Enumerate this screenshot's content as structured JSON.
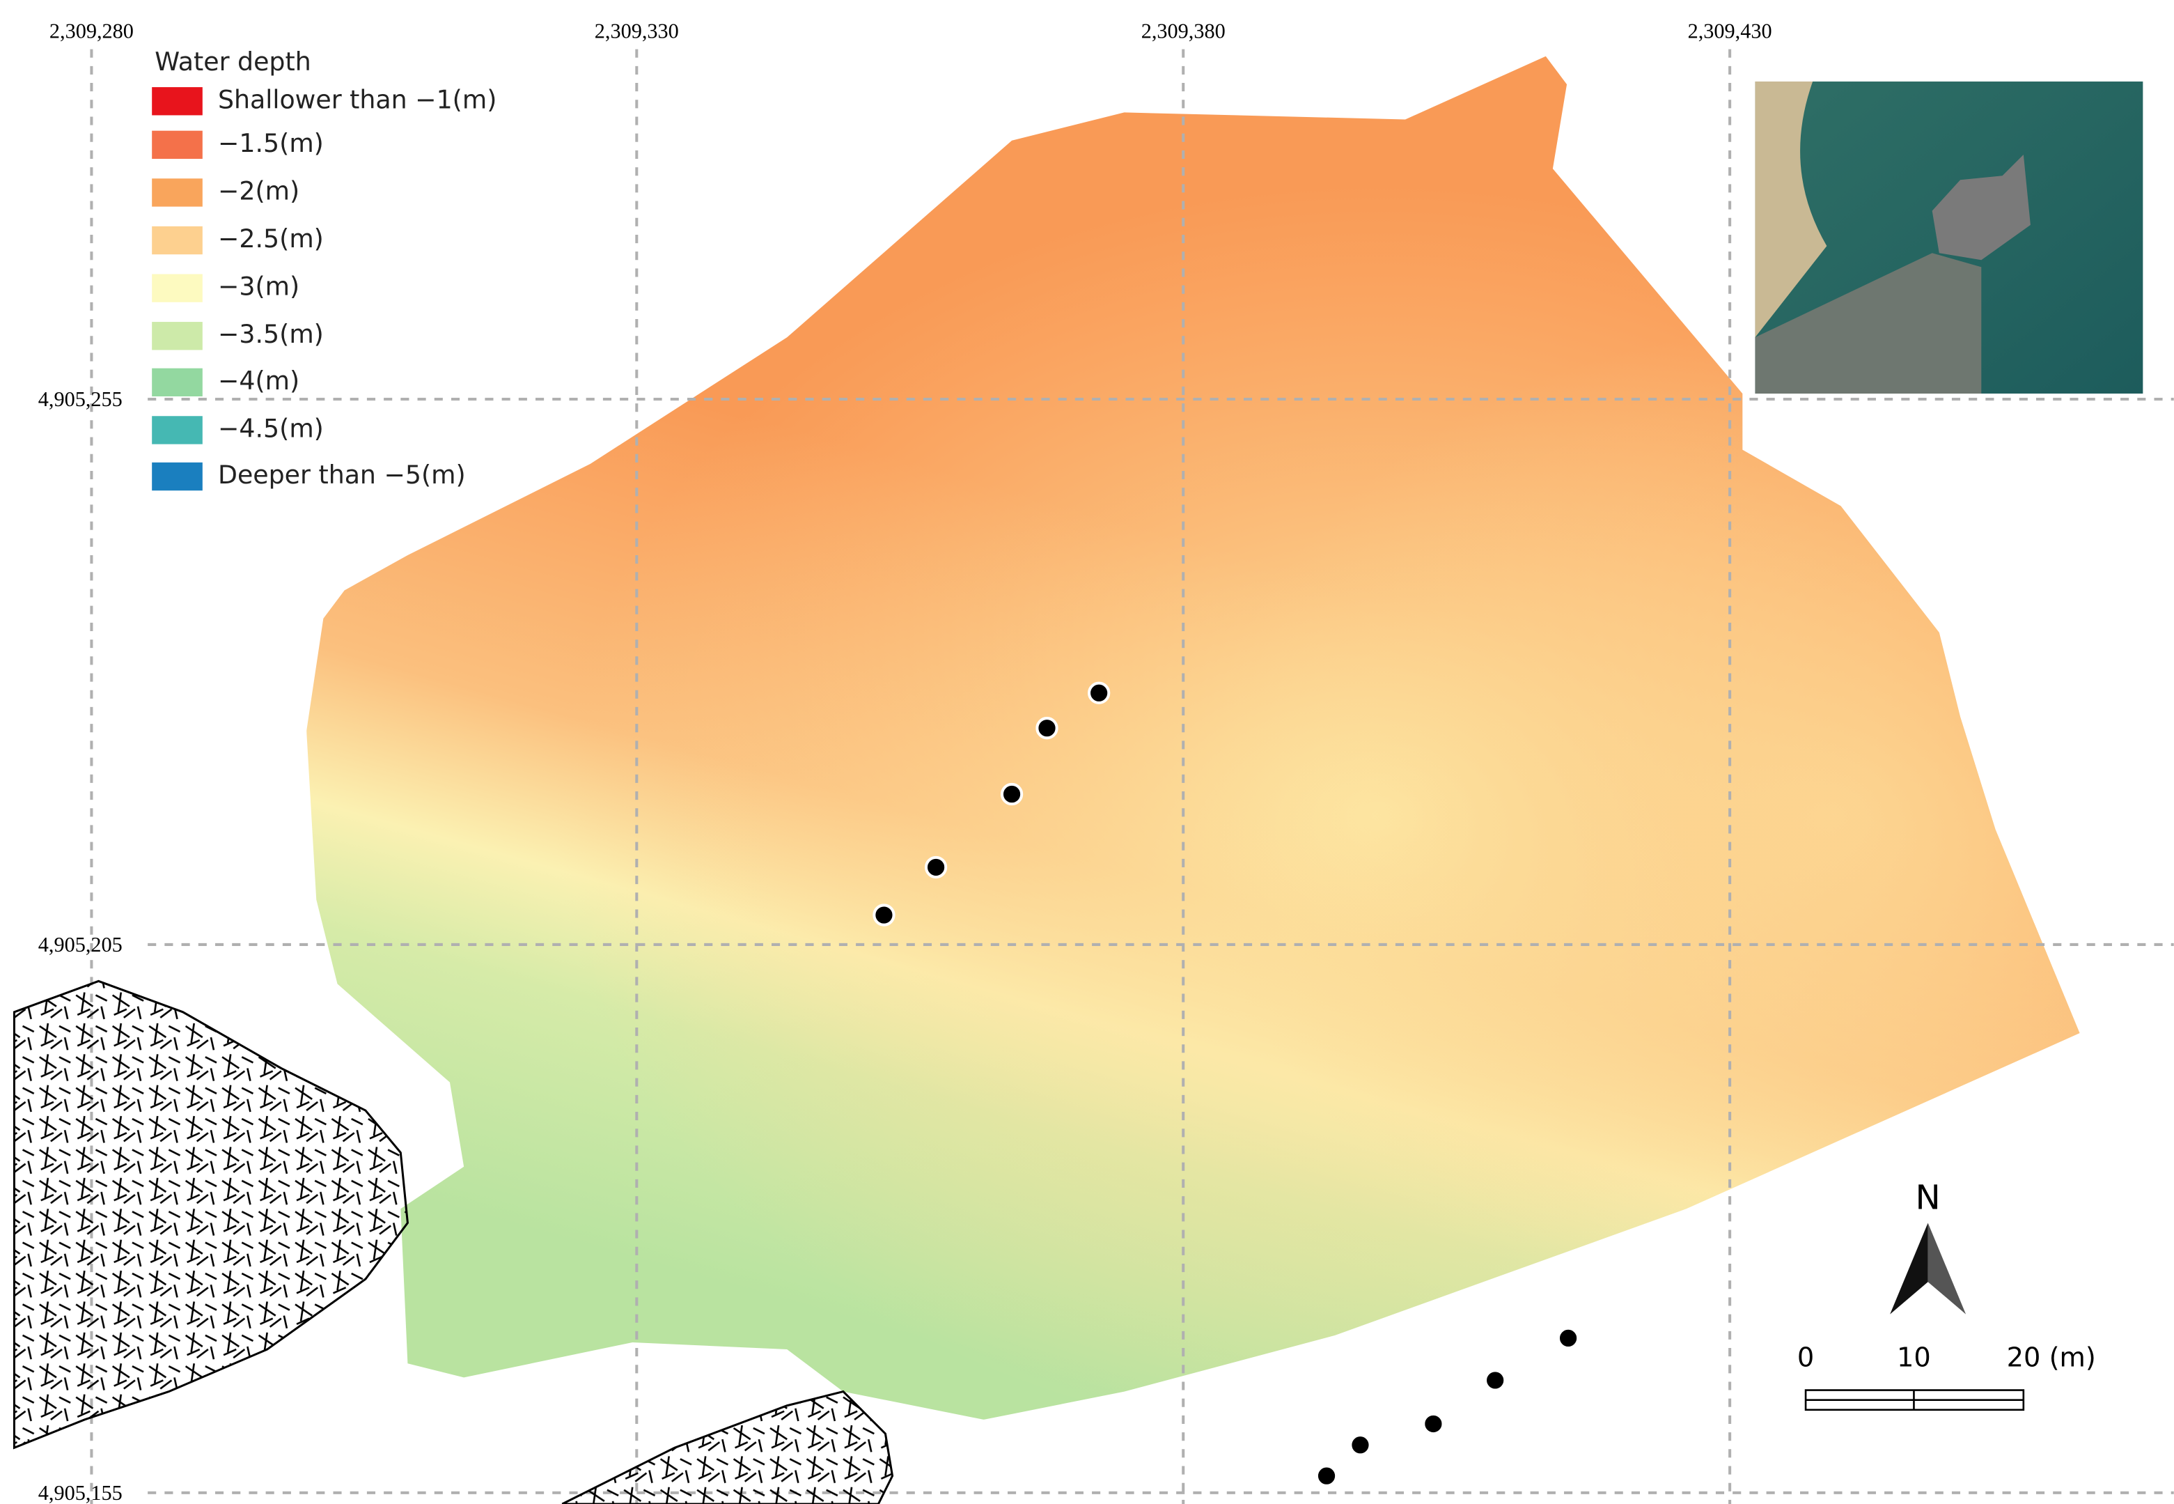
{
  "map": {
    "legend": {
      "title": "Water depth",
      "items": [
        {
          "label": "Shallower than −1(m)",
          "color": "#e8141c"
        },
        {
          "label": "−1.5(m)",
          "color": "#f4714a"
        },
        {
          "label": "−2(m)",
          "color": "#f9a55c"
        },
        {
          "label": "−2.5(m)",
          "color": "#fdd08f"
        },
        {
          "label": "−3(m)",
          "color": "#fdfac0"
        },
        {
          "label": "−3.5(m)",
          "color": "#cdeaa9"
        },
        {
          "label": "−4(m)",
          "color": "#93d8a0"
        },
        {
          "label": "−4.5(m)",
          "color": "#45b8b3"
        },
        {
          "label": "Deeper than −5(m)",
          "color": "#1a7fbf"
        }
      ]
    },
    "x_grid_labels": [
      "2,309,280",
      "2,309,330",
      "2,309,380",
      "2,309,430"
    ],
    "y_grid_labels": [
      "4,905,255",
      "4,905,205",
      "4,905,155"
    ],
    "north_label": "N",
    "scale_labels": [
      "0",
      "10",
      "20 (m)"
    ]
  }
}
